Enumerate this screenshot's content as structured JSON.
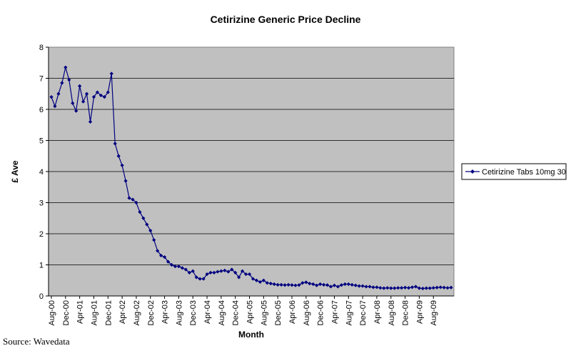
{
  "chart_data": {
    "type": "line",
    "title": "Cetirizine Generic Price Decline",
    "xlabel": "Month",
    "ylabel": "£ Ave",
    "ylim": [
      0,
      8
    ],
    "yticks": [
      "0",
      "1",
      "2",
      "3",
      "4",
      "5",
      "6",
      "7",
      "8"
    ],
    "grid": "horizontal",
    "legend_position": "right",
    "plot_background": "#c0c0c0",
    "series_color": "#000080",
    "tick_labels": [
      "Aug-00",
      "Dec-00",
      "Apr-01",
      "Aug-01",
      "Dec-01",
      "Apr-02",
      "Aug-02",
      "Dec-02",
      "Apr-03",
      "Aug-03",
      "Dec-03",
      "Apr-04",
      "Aug-04",
      "Dec-04",
      "Apr-05",
      "Aug-05",
      "Dec-05",
      "Apr-06",
      "Aug-06",
      "Dec-06",
      "Apr-07",
      "Aug-07",
      "Dec-07",
      "Apr-08",
      "Aug-08",
      "Dec-08",
      "Apr-09",
      "Aug-09"
    ],
    "series": [
      {
        "name": "Cetirizine Tabs 10mg 30",
        "values": [
          6.4,
          6.1,
          6.5,
          6.85,
          7.35,
          6.95,
          6.2,
          5.95,
          6.75,
          6.25,
          6.5,
          5.6,
          6.4,
          6.55,
          6.45,
          6.4,
          6.55,
          7.15,
          4.9,
          4.5,
          4.2,
          3.7,
          3.15,
          3.1,
          3.0,
          2.7,
          2.5,
          2.3,
          2.1,
          1.8,
          1.45,
          1.3,
          1.25,
          1.1,
          1.0,
          0.95,
          0.95,
          0.9,
          0.85,
          0.75,
          0.8,
          0.6,
          0.55,
          0.55,
          0.7,
          0.75,
          0.75,
          0.78,
          0.8,
          0.82,
          0.78,
          0.85,
          0.75,
          0.6,
          0.8,
          0.7,
          0.7,
          0.55,
          0.5,
          0.45,
          0.5,
          0.42,
          0.4,
          0.38,
          0.36,
          0.36,
          0.35,
          0.36,
          0.35,
          0.34,
          0.35,
          0.42,
          0.44,
          0.4,
          0.38,
          0.34,
          0.38,
          0.36,
          0.35,
          0.3,
          0.34,
          0.3,
          0.35,
          0.38,
          0.38,
          0.36,
          0.34,
          0.32,
          0.32,
          0.3,
          0.3,
          0.28,
          0.28,
          0.26,
          0.25,
          0.26,
          0.25,
          0.25,
          0.26,
          0.26,
          0.27,
          0.26,
          0.28,
          0.3,
          0.25,
          0.24,
          0.25,
          0.25,
          0.26,
          0.27,
          0.28,
          0.27,
          0.26,
          0.27
        ]
      }
    ]
  },
  "source": "Source: Wavedata"
}
